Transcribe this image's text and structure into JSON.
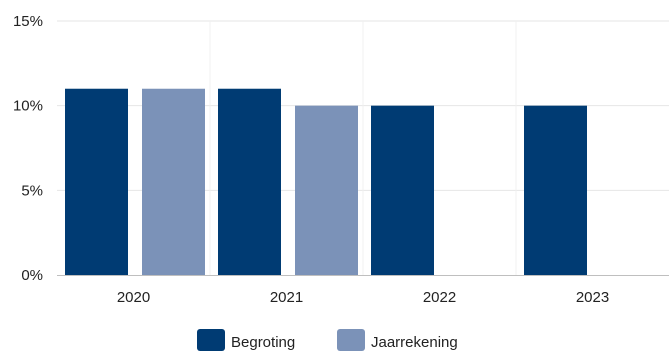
{
  "chart_data": {
    "type": "bar",
    "title": "",
    "xlabel": "",
    "ylabel": "",
    "categories": [
      "2020",
      "2021",
      "2022",
      "2023"
    ],
    "series": [
      {
        "name": "Begroting",
        "values": [
          11,
          11,
          10,
          10
        ],
        "color": "#003b73"
      },
      {
        "name": "Jaarrekening",
        "values": [
          11,
          10,
          null,
          null
        ],
        "color": "#7b92b8"
      }
    ],
    "ylim": [
      0,
      15
    ],
    "yticks": [
      "0%",
      "5%",
      "10%",
      "15%"
    ],
    "ytick_values": [
      0,
      5,
      10,
      15
    ],
    "grid": true,
    "legend_position": "bottom-center"
  }
}
